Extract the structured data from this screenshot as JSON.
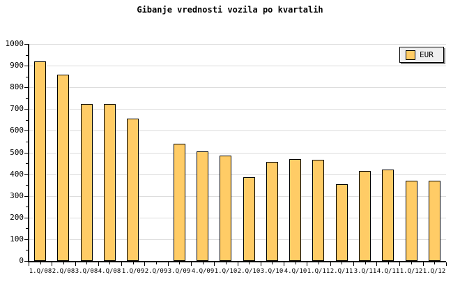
{
  "title": "Gibanje vrednosti vozila po kvartalih",
  "legend": {
    "label": "EUR",
    "swatch_color": "#ffcc66"
  },
  "colors": {
    "bar_fill": "#ffcc66",
    "bar_border": "#000000",
    "grid": "#dcdcdc",
    "axis": "#000000",
    "background": "#ffffff",
    "legend_bg": "#efefef",
    "legend_shadow": "#8a8a8a"
  },
  "chart_data": {
    "type": "bar",
    "title": "Gibanje vrednosti vozila po kvartalih",
    "categories": [
      "1.Q/08",
      "2.Q/08",
      "3.Q/08",
      "4.Q/08",
      "1.Q/09",
      "2.Q/09",
      "3.Q/09",
      "4.Q/09",
      "1.Q/10",
      "2.Q/10",
      "3.Q/10",
      "4.Q/10",
      "1.Q/11",
      "2.Q/11",
      "3.Q/11",
      "4.Q/11",
      "1.Q/12",
      "1.Q/12"
    ],
    "series": [
      {
        "name": "EUR",
        "values": [
          920,
          860,
          725,
          725,
          655,
          0,
          540,
          505,
          485,
          385,
          455,
          470,
          465,
          355,
          415,
          420,
          370,
          370
        ]
      }
    ],
    "xlabel": "",
    "ylabel": "",
    "ylim": [
      0,
      1000
    ],
    "ytick_interval": 100,
    "ytick_minor_interval": 50,
    "ytick_labels": [
      "0",
      "100",
      "200",
      "300",
      "400",
      "500",
      "600",
      "700",
      "800",
      "900",
      "1000"
    ],
    "grid": "horizontal-major",
    "legend_position": "top-right"
  }
}
